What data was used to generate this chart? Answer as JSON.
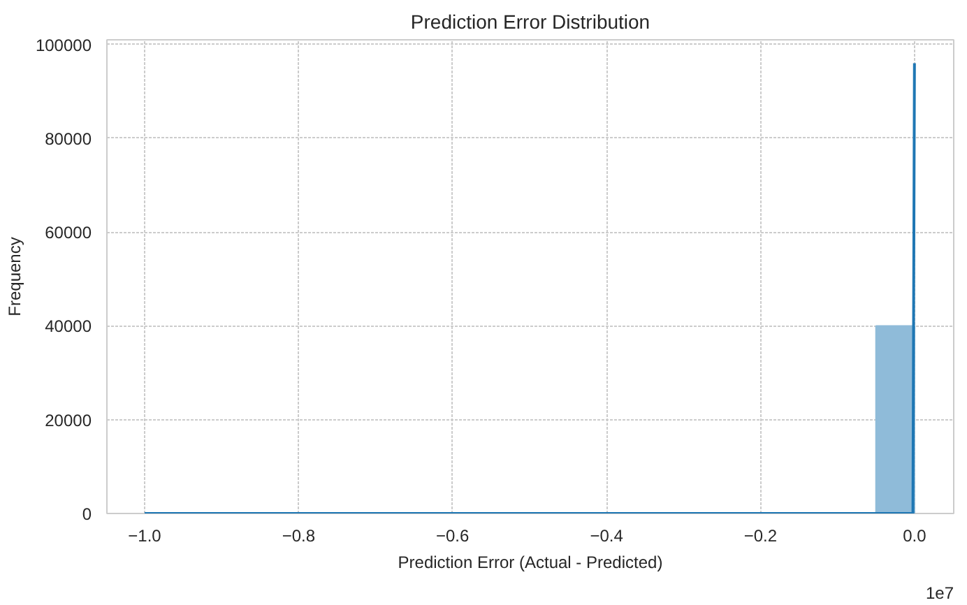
{
  "chart_data": {
    "type": "histogram",
    "title": "Prediction Error Distribution",
    "xlabel": "Prediction Error (Actual - Predicted)",
    "ylabel": "Frequency",
    "bins": [
      -1.0,
      -0.95,
      -0.9,
      -0.85,
      -0.8,
      -0.75,
      -0.7,
      -0.65,
      -0.6,
      -0.55,
      -0.5,
      -0.45,
      -0.4,
      -0.35,
      -0.3,
      -0.25,
      -0.2,
      -0.15,
      -0.1,
      -0.05,
      0.0
    ],
    "values": [
      0,
      0,
      0,
      0,
      0,
      0,
      0,
      0,
      0,
      0,
      0,
      0,
      0,
      0,
      0,
      0,
      0,
      0,
      0,
      40000
    ],
    "color": "#8fbbd9",
    "series": [
      {
        "type": "line",
        "color": "#1f77b4",
        "x": [
          -1.0,
          -0.5,
          -0.1,
          -0.002,
          0.0
        ],
        "values": [
          0,
          0,
          0,
          0,
          96000
        ]
      }
    ],
    "xlim": [
      -1.049,
      0.051
    ],
    "ylim": [
      0,
      101000
    ],
    "xticks": [
      {
        "value": -1.0,
        "label": "−1.0"
      },
      {
        "value": -0.8,
        "label": "−0.8"
      },
      {
        "value": -0.6,
        "label": "−0.6"
      },
      {
        "value": -0.4,
        "label": "−0.4"
      },
      {
        "value": -0.2,
        "label": "−0.2"
      },
      {
        "value": 0.0,
        "label": "0.0"
      }
    ],
    "yticks": [
      0,
      20000,
      40000,
      60000,
      80000,
      100000
    ],
    "grid": true,
    "annotations": [
      "1e7"
    ]
  }
}
